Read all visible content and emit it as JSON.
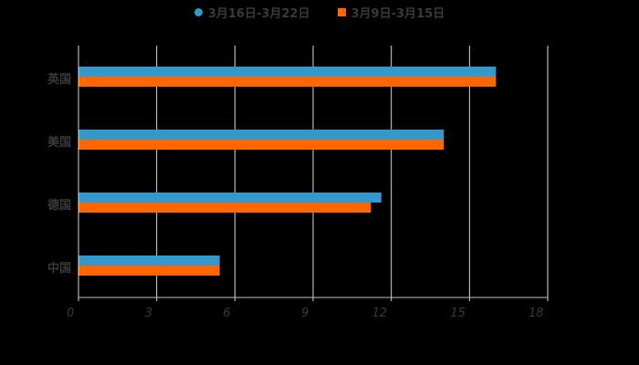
{
  "chart_data": {
    "type": "bar",
    "orientation": "horizontal",
    "title": "",
    "xlabel": "",
    "ylabel": "",
    "categories": [
      "英国",
      "美国",
      "德国",
      "中国"
    ],
    "series": [
      {
        "name": "3月16日-3月22日",
        "color": "#3399cc",
        "values": [
          16.0,
          14.0,
          11.6,
          5.4
        ]
      },
      {
        "name": "3月9日-3月15日",
        "color": "#ff6600",
        "values": [
          16.0,
          14.0,
          11.2,
          5.4
        ]
      }
    ],
    "xlim": [
      0,
      18
    ],
    "xticks": [
      0,
      3,
      6,
      9,
      12,
      15,
      18
    ],
    "xtick_labels": [
      "0",
      "3",
      "6",
      "9",
      "12",
      "15",
      "18"
    ],
    "grid": "vertical",
    "legend_position": "top"
  },
  "legend": {
    "items": [
      {
        "label": "3月16日-3月22日",
        "color": "#3399cc",
        "marker": "circle"
      },
      {
        "label": "3月9日-3月15日",
        "color": "#ff6600",
        "marker": "square"
      }
    ]
  }
}
